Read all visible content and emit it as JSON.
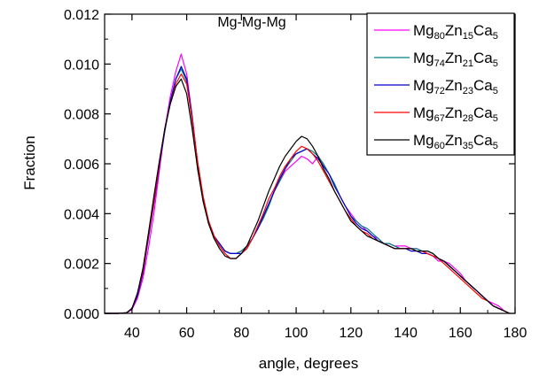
{
  "chart_data": {
    "type": "line",
    "title": "Mg-Mg-Mg",
    "xlabel": "angle, degrees",
    "ylabel": "Fraction",
    "xlim": [
      30,
      180
    ],
    "ylim": [
      0.0,
      0.012
    ],
    "xticks": [
      40,
      60,
      80,
      100,
      120,
      140,
      160,
      180
    ],
    "xtick_labels": [
      "40",
      "60",
      "80",
      "100",
      "120",
      "140",
      "160",
      "180"
    ],
    "yticks": [
      0.0,
      0.002,
      0.004,
      0.006,
      0.008,
      0.01,
      0.012
    ],
    "ytick_labels": [
      "0.000",
      "0.002",
      "0.004",
      "0.006",
      "0.008",
      "0.010",
      "0.012"
    ],
    "grid": false,
    "legend_position": "top-right",
    "series": [
      {
        "name": "Mg80Zn15Ca5",
        "legend_parts": [
          [
            "Mg",
            ""
          ],
          [
            "80",
            "sub"
          ],
          [
            "Zn",
            ""
          ],
          [
            "15",
            "sub"
          ],
          [
            "Ca",
            ""
          ],
          [
            "5",
            "sub"
          ]
        ],
        "color": "#ff00ff",
        "x": [
          30,
          35,
          38,
          40,
          42,
          44,
          46,
          48,
          50,
          52,
          54,
          56,
          58,
          60,
          62,
          64,
          66,
          68,
          70,
          72,
          74,
          76,
          78,
          80,
          82,
          84,
          86,
          88,
          90,
          92,
          94,
          96,
          98,
          100,
          102,
          104,
          106,
          108,
          110,
          112,
          114,
          116,
          118,
          120,
          122,
          124,
          126,
          128,
          130,
          132,
          134,
          136,
          138,
          140,
          142,
          144,
          146,
          148,
          150,
          152,
          154,
          156,
          158,
          160,
          162,
          164,
          166,
          168,
          170,
          172,
          174,
          176,
          178
        ],
        "y": [
          0.0,
          0.0,
          2e-05,
          0.00015,
          0.0006,
          0.0014,
          0.0026,
          0.004,
          0.0057,
          0.0074,
          0.0087,
          0.0097,
          0.0104,
          0.0096,
          0.0079,
          0.006,
          0.0046,
          0.0037,
          0.0031,
          0.0028,
          0.0025,
          0.0024,
          0.0024,
          0.0025,
          0.0027,
          0.003,
          0.0034,
          0.0039,
          0.0044,
          0.0049,
          0.0053,
          0.0057,
          0.0059,
          0.0061,
          0.0063,
          0.0062,
          0.006,
          0.0063,
          0.0059,
          0.0056,
          0.0052,
          0.0047,
          0.0043,
          0.004,
          0.0037,
          0.0035,
          0.0033,
          0.0031,
          0.003,
          0.0028,
          0.0028,
          0.0027,
          0.0027,
          0.0027,
          0.0026,
          0.0026,
          0.0025,
          0.0024,
          0.0023,
          0.0021,
          0.0021,
          0.002,
          0.0018,
          0.0016,
          0.0013,
          0.0011,
          0.0009,
          0.0007,
          0.0005,
          0.0004,
          0.0003,
          0.0001,
          0.0
        ]
      },
      {
        "name": "Mg74Zn21Ca5",
        "legend_parts": [
          [
            "Mg",
            ""
          ],
          [
            "74",
            "sub"
          ],
          [
            "Zn",
            ""
          ],
          [
            "21",
            "sub"
          ],
          [
            "Ca",
            ""
          ],
          [
            "5",
            "sub"
          ]
        ],
        "color": "#008080",
        "x": [
          30,
          35,
          38,
          40,
          42,
          44,
          46,
          48,
          50,
          52,
          54,
          56,
          58,
          60,
          62,
          64,
          66,
          68,
          70,
          72,
          74,
          76,
          78,
          80,
          82,
          84,
          86,
          88,
          90,
          92,
          94,
          96,
          98,
          100,
          102,
          104,
          106,
          108,
          110,
          112,
          114,
          116,
          118,
          120,
          122,
          124,
          126,
          128,
          130,
          132,
          134,
          136,
          138,
          140,
          142,
          144,
          146,
          148,
          150,
          152,
          154,
          156,
          158,
          160,
          162,
          164,
          166,
          168,
          170,
          172,
          174,
          176,
          178
        ],
        "y": [
          0.0,
          0.0,
          2e-05,
          0.0002,
          0.0008,
          0.0017,
          0.0032,
          0.0046,
          0.006,
          0.0074,
          0.0085,
          0.0094,
          0.0098,
          0.0093,
          0.0077,
          0.0058,
          0.0045,
          0.0036,
          0.003,
          0.0028,
          0.0025,
          0.0024,
          0.0024,
          0.0025,
          0.0027,
          0.003,
          0.0034,
          0.0038,
          0.0043,
          0.0049,
          0.0053,
          0.0058,
          0.0061,
          0.0064,
          0.0065,
          0.0066,
          0.0065,
          0.0063,
          0.006,
          0.0056,
          0.0052,
          0.0047,
          0.0043,
          0.0039,
          0.0037,
          0.0035,
          0.0034,
          0.0032,
          0.003,
          0.0028,
          0.0028,
          0.0027,
          0.0026,
          0.0026,
          0.0026,
          0.0026,
          0.0025,
          0.0025,
          0.0024,
          0.0022,
          0.0021,
          0.0019,
          0.0017,
          0.0015,
          0.0013,
          0.0011,
          0.0009,
          0.0007,
          0.0005,
          0.0003,
          0.0002,
          0.0001,
          0.0
        ]
      },
      {
        "name": "Mg72Zn23Ca5",
        "legend_parts": [
          [
            "Mg",
            ""
          ],
          [
            "72",
            "sub"
          ],
          [
            "Zn",
            ""
          ],
          [
            "23",
            "sub"
          ],
          [
            "Ca",
            ""
          ],
          [
            "5",
            "sub"
          ]
        ],
        "color": "#0000cc",
        "x": [
          30,
          35,
          38,
          40,
          42,
          44,
          46,
          48,
          50,
          52,
          54,
          56,
          58,
          60,
          62,
          64,
          66,
          68,
          70,
          72,
          74,
          76,
          78,
          80,
          82,
          84,
          86,
          88,
          90,
          92,
          94,
          96,
          98,
          100,
          102,
          104,
          106,
          108,
          110,
          112,
          114,
          116,
          118,
          120,
          122,
          124,
          126,
          128,
          130,
          132,
          134,
          136,
          138,
          140,
          142,
          144,
          146,
          148,
          150,
          152,
          154,
          156,
          158,
          160,
          162,
          164,
          166,
          168,
          170,
          172,
          174,
          176,
          178
        ],
        "y": [
          0.0,
          0.0,
          2e-05,
          0.00018,
          0.0007,
          0.0016,
          0.003,
          0.0044,
          0.0059,
          0.0073,
          0.0085,
          0.0094,
          0.0099,
          0.0094,
          0.0079,
          0.006,
          0.0046,
          0.0037,
          0.0031,
          0.0028,
          0.0025,
          0.0024,
          0.0024,
          0.0024,
          0.0026,
          0.003,
          0.0034,
          0.0039,
          0.0044,
          0.0049,
          0.0054,
          0.0058,
          0.0062,
          0.0064,
          0.0065,
          0.0066,
          0.0064,
          0.0062,
          0.0059,
          0.0056,
          0.0051,
          0.0047,
          0.0043,
          0.0039,
          0.0036,
          0.0034,
          0.0033,
          0.0031,
          0.0029,
          0.0028,
          0.0027,
          0.0026,
          0.0026,
          0.0026,
          0.0025,
          0.0025,
          0.0024,
          0.0024,
          0.0023,
          0.0022,
          0.0021,
          0.0019,
          0.0017,
          0.0015,
          0.0013,
          0.0011,
          0.0009,
          0.0007,
          0.0005,
          0.0003,
          0.0002,
          0.0001,
          0.0
        ]
      },
      {
        "name": "Mg67Zn28Ca5",
        "legend_parts": [
          [
            "Mg",
            ""
          ],
          [
            "67",
            "sub"
          ],
          [
            "Zn",
            ""
          ],
          [
            "28",
            "sub"
          ],
          [
            "Ca",
            ""
          ],
          [
            "5",
            "sub"
          ]
        ],
        "color": "#ff0000",
        "x": [
          30,
          35,
          38,
          40,
          42,
          44,
          46,
          48,
          50,
          52,
          54,
          56,
          58,
          60,
          62,
          64,
          66,
          68,
          70,
          72,
          74,
          76,
          78,
          80,
          82,
          84,
          86,
          88,
          90,
          92,
          94,
          96,
          98,
          100,
          102,
          104,
          106,
          108,
          110,
          112,
          114,
          116,
          118,
          120,
          122,
          124,
          126,
          128,
          130,
          132,
          134,
          136,
          138,
          140,
          142,
          144,
          146,
          148,
          150,
          152,
          154,
          156,
          158,
          160,
          162,
          164,
          166,
          168,
          170,
          172,
          174,
          176,
          178
        ],
        "y": [
          0.0,
          0.0,
          2e-05,
          0.0002,
          0.0008,
          0.0017,
          0.0031,
          0.0045,
          0.006,
          0.0074,
          0.0084,
          0.0092,
          0.0096,
          0.0092,
          0.0078,
          0.0061,
          0.0047,
          0.0037,
          0.0031,
          0.0027,
          0.0024,
          0.0022,
          0.0022,
          0.0024,
          0.0026,
          0.003,
          0.0035,
          0.004,
          0.0046,
          0.005,
          0.0055,
          0.0059,
          0.0062,
          0.0065,
          0.0067,
          0.0066,
          0.0064,
          0.0061,
          0.0057,
          0.0053,
          0.0049,
          0.0045,
          0.0041,
          0.0038,
          0.0035,
          0.0033,
          0.0032,
          0.003,
          0.0029,
          0.0028,
          0.0027,
          0.0026,
          0.0026,
          0.0026,
          0.0026,
          0.0025,
          0.0025,
          0.0024,
          0.0023,
          0.0022,
          0.002,
          0.0018,
          0.0016,
          0.0014,
          0.0012,
          0.001,
          0.0008,
          0.0006,
          0.0005,
          0.0003,
          0.0002,
          0.0001,
          0.0
        ]
      },
      {
        "name": "Mg60Zn35Ca5",
        "legend_parts": [
          [
            "Mg",
            ""
          ],
          [
            "60",
            "sub"
          ],
          [
            "Zn",
            ""
          ],
          [
            "35",
            "sub"
          ],
          [
            "Ca",
            ""
          ],
          [
            "5",
            "sub"
          ]
        ],
        "color": "#000000",
        "x": [
          30,
          35,
          38,
          40,
          42,
          44,
          46,
          48,
          50,
          52,
          54,
          56,
          58,
          60,
          62,
          64,
          66,
          68,
          70,
          72,
          74,
          76,
          78,
          80,
          82,
          84,
          86,
          88,
          90,
          92,
          94,
          96,
          98,
          100,
          102,
          104,
          106,
          108,
          110,
          112,
          114,
          116,
          118,
          120,
          122,
          124,
          126,
          128,
          130,
          132,
          134,
          136,
          138,
          140,
          142,
          144,
          146,
          148,
          150,
          152,
          154,
          156,
          158,
          160,
          162,
          164,
          166,
          168,
          170,
          172,
          174,
          176,
          178
        ],
        "y": [
          0.0,
          0.0,
          2e-05,
          0.0002,
          0.0008,
          0.0018,
          0.0032,
          0.0047,
          0.0061,
          0.0074,
          0.0084,
          0.0091,
          0.0094,
          0.0088,
          0.0074,
          0.0058,
          0.0045,
          0.0036,
          0.003,
          0.0026,
          0.0023,
          0.0022,
          0.0022,
          0.0024,
          0.0027,
          0.0032,
          0.0037,
          0.0043,
          0.0049,
          0.0054,
          0.0059,
          0.0063,
          0.0066,
          0.0069,
          0.0071,
          0.007,
          0.0067,
          0.0063,
          0.0058,
          0.0054,
          0.0049,
          0.0045,
          0.0041,
          0.0037,
          0.0035,
          0.0033,
          0.0031,
          0.003,
          0.0029,
          0.0028,
          0.0027,
          0.0026,
          0.0026,
          0.0026,
          0.0026,
          0.0025,
          0.0025,
          0.0025,
          0.0024,
          0.0022,
          0.0021,
          0.0019,
          0.0017,
          0.0015,
          0.0013,
          0.0011,
          0.0009,
          0.0007,
          0.0005,
          0.0003,
          0.0002,
          0.0001,
          0.0
        ]
      }
    ]
  }
}
